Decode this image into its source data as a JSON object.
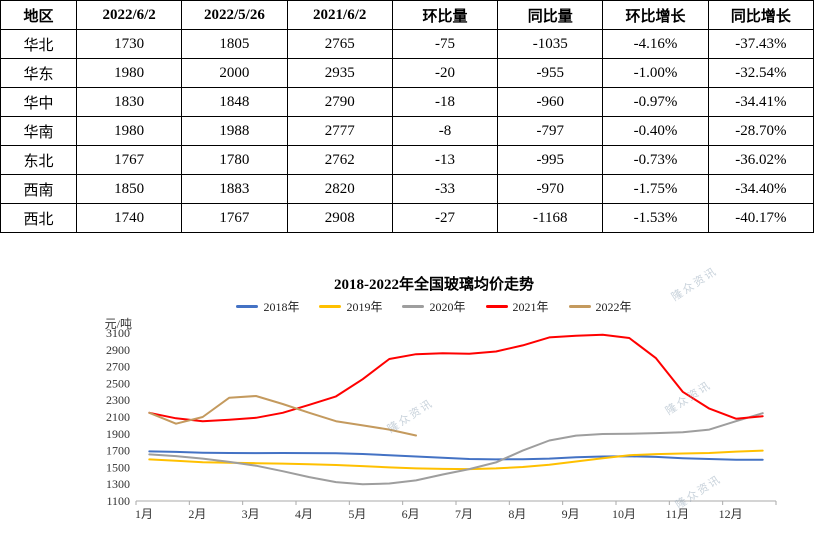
{
  "table": {
    "headers": [
      "地区",
      "2022/6/2",
      "2022/5/26",
      "2021/6/2",
      "环比量",
      "同比量",
      "环比增长",
      "同比增长"
    ],
    "rows": [
      [
        "华北",
        "1730",
        "1805",
        "2765",
        "-75",
        "-1035",
        "-4.16%",
        "-37.43%"
      ],
      [
        "华东",
        "1980",
        "2000",
        "2935",
        "-20",
        "-955",
        "-1.00%",
        "-32.54%"
      ],
      [
        "华中",
        "1830",
        "1848",
        "2790",
        "-18",
        "-960",
        "-0.97%",
        "-34.41%"
      ],
      [
        "华南",
        "1980",
        "1988",
        "2777",
        "-8",
        "-797",
        "-0.40%",
        "-28.70%"
      ],
      [
        "东北",
        "1767",
        "1780",
        "2762",
        "-13",
        "-995",
        "-0.73%",
        "-36.02%"
      ],
      [
        "西南",
        "1850",
        "1883",
        "2820",
        "-33",
        "-970",
        "-1.75%",
        "-34.40%"
      ],
      [
        "西北",
        "1740",
        "1767",
        "2908",
        "-27",
        "-1168",
        "-1.53%",
        "-40.17%"
      ]
    ]
  },
  "chart_data": {
    "type": "line",
    "title": "2018-2022年全国玻璃均价走势",
    "ylabel": "元/吨",
    "ylim": [
      1100,
      3100
    ],
    "yticks": [
      1100,
      1300,
      1500,
      1700,
      1900,
      2100,
      2300,
      2500,
      2700,
      2900,
      3100
    ],
    "x_labels": [
      "1月",
      "2月",
      "3月",
      "4月",
      "5月",
      "6月",
      "7月",
      "8月",
      "9月",
      "10月",
      "11月",
      "12月"
    ],
    "points_per_month": 2,
    "grid": false,
    "legend_position": "top",
    "series": [
      {
        "name": "2018年",
        "color": "#4472C4",
        "values": [
          1690,
          1685,
          1675,
          1672,
          1670,
          1672,
          1670,
          1668,
          1660,
          1645,
          1630,
          1615,
          1600,
          1595,
          1598,
          1605,
          1620,
          1630,
          1632,
          1625,
          1610,
          1600,
          1592,
          1590
        ]
      },
      {
        "name": "2019年",
        "color": "#FFC000",
        "values": [
          1595,
          1578,
          1562,
          1555,
          1550,
          1545,
          1538,
          1528,
          1515,
          1500,
          1488,
          1482,
          1480,
          1488,
          1505,
          1532,
          1570,
          1610,
          1645,
          1658,
          1665,
          1672,
          1688,
          1700
        ]
      },
      {
        "name": "2020年",
        "color": "#9E9E9E",
        "values": [
          1655,
          1635,
          1605,
          1565,
          1520,
          1455,
          1385,
          1325,
          1300,
          1308,
          1345,
          1415,
          1480,
          1560,
          1700,
          1820,
          1878,
          1898,
          1900,
          1908,
          1918,
          1950,
          2050,
          2145
        ]
      },
      {
        "name": "2021年",
        "color": "#FF0000",
        "values": [
          2150,
          2085,
          2050,
          2068,
          2090,
          2150,
          2245,
          2345,
          2550,
          2790,
          2848,
          2858,
          2852,
          2880,
          2952,
          3048,
          3068,
          3078,
          3040,
          2800,
          2400,
          2200,
          2080,
          2110
        ]
      },
      {
        "name": "2022年",
        "color": "#C49A5E",
        "values": [
          2150,
          2020,
          2100,
          2330,
          2350,
          2255,
          2150,
          2050,
          2000,
          1950,
          1880,
          null,
          null,
          null,
          null,
          null,
          null,
          null,
          null,
          null,
          null,
          null,
          null,
          null
        ]
      }
    ],
    "watermark": {
      "text": "隆众资讯"
    }
  }
}
